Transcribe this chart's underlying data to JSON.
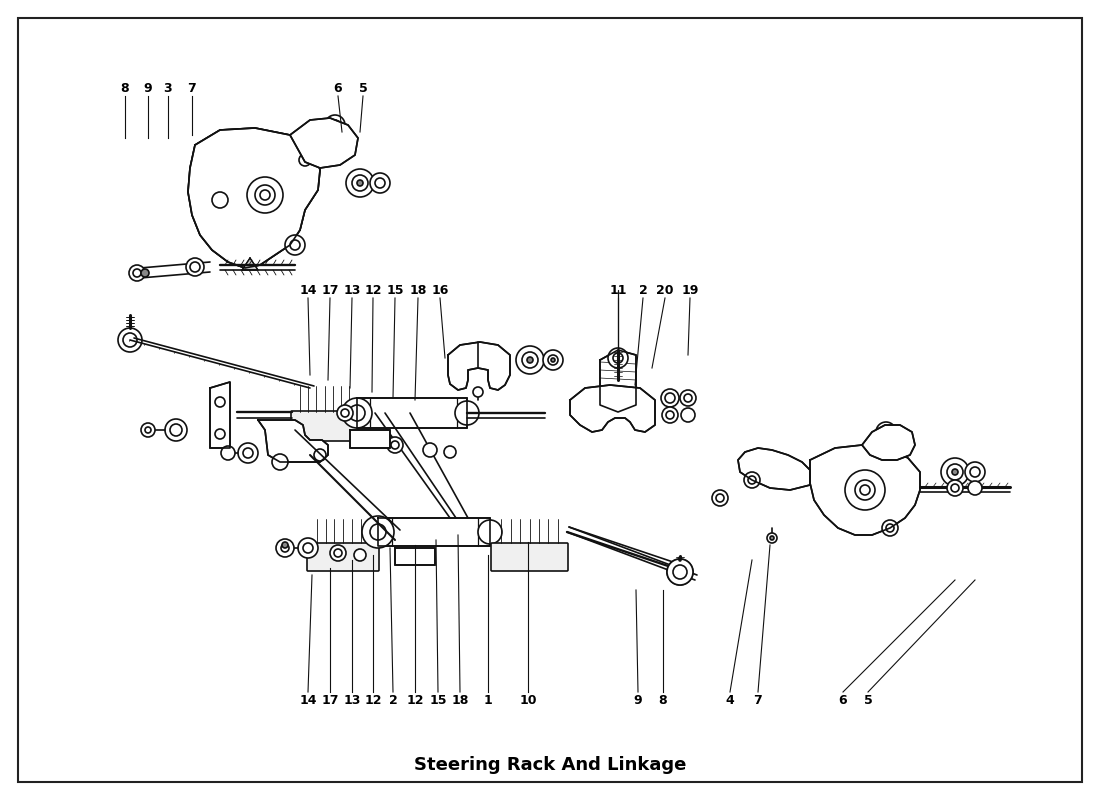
{
  "title": "Steering Rack And Linkage",
  "bg": "#ffffff",
  "lc": "#111111",
  "figsize": [
    11.0,
    8.0
  ],
  "dpi": 100,
  "top_labels": [
    [
      "8",
      125,
      88
    ],
    [
      "9",
      148,
      88
    ],
    [
      "3",
      168,
      88
    ],
    [
      "7",
      192,
      88
    ],
    [
      "6",
      338,
      88
    ],
    [
      "5",
      363,
      88
    ]
  ],
  "mid_labels": [
    [
      "14",
      308,
      290
    ],
    [
      "17",
      330,
      290
    ],
    [
      "13",
      352,
      290
    ],
    [
      "12",
      373,
      290
    ],
    [
      "15",
      395,
      290
    ],
    [
      "18",
      418,
      290
    ],
    [
      "16",
      440,
      290
    ],
    [
      "11",
      618,
      290
    ],
    [
      "2",
      643,
      290
    ],
    [
      "20",
      665,
      290
    ],
    [
      "19",
      690,
      290
    ]
  ],
  "bot_labels": [
    [
      "14",
      308,
      700
    ],
    [
      "17",
      330,
      700
    ],
    [
      "13",
      352,
      700
    ],
    [
      "12",
      373,
      700
    ],
    [
      "2",
      393,
      700
    ],
    [
      "12",
      415,
      700
    ],
    [
      "15",
      438,
      700
    ],
    [
      "18",
      460,
      700
    ],
    [
      "1",
      488,
      700
    ],
    [
      "10",
      528,
      700
    ],
    [
      "9",
      638,
      700
    ],
    [
      "8",
      663,
      700
    ],
    [
      "4",
      730,
      700
    ],
    [
      "7",
      758,
      700
    ],
    [
      "6",
      843,
      700
    ],
    [
      "5",
      868,
      700
    ]
  ]
}
